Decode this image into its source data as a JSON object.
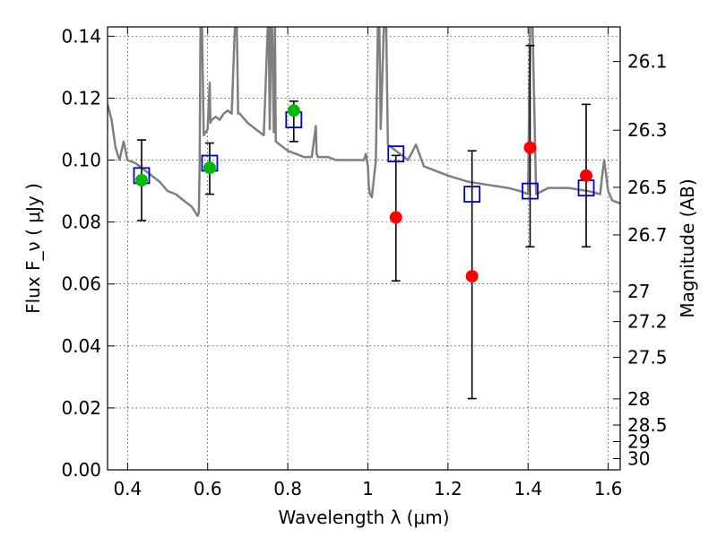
{
  "chart_data": {
    "type": "scatter",
    "xlabel": "Wavelength  λ (μm)",
    "ylabel": "Flux  F_ν  ( μJy )",
    "ylabel_right": "Magnitude (AB)",
    "xlim": [
      0.35,
      1.63
    ],
    "ylim": [
      0.0,
      0.143
    ],
    "grid": true,
    "x_ticks": [
      0.4,
      0.6,
      0.8,
      1.0,
      1.2,
      1.4,
      1.6
    ],
    "x_tick_labels": [
      "0.4",
      "0.6",
      "0.8",
      "1",
      "1.2",
      "1.4",
      "1.6"
    ],
    "y_ticks": [
      0.0,
      0.02,
      0.04,
      0.06,
      0.08,
      0.1,
      0.12,
      0.14
    ],
    "y_tick_labels": [
      "0.00",
      "0.02",
      "0.04",
      "0.06",
      "0.08",
      "0.10",
      "0.12",
      "0.14"
    ],
    "mag_ticks": [
      26.1,
      26.3,
      26.5,
      26.7,
      27,
      27.2,
      27.5,
      28,
      28.5,
      29,
      30
    ],
    "mag_tick_labels": [
      "26.1",
      "26.3",
      "26.5",
      "26.7",
      "27",
      "27.2",
      "27.5",
      "28",
      "28.5",
      "29",
      "30"
    ],
    "series": [
      {
        "kind": "spectrum",
        "color": "#7f7f7f",
        "x": [
          0.35,
          0.36,
          0.37,
          0.38,
          0.39,
          0.4,
          0.42,
          0.44,
          0.46,
          0.48,
          0.5,
          0.52,
          0.54,
          0.56,
          0.565,
          0.57,
          0.575,
          0.578,
          0.58,
          0.582,
          0.585,
          0.59,
          0.6,
          0.605,
          0.607,
          0.61,
          0.62,
          0.63,
          0.64,
          0.65,
          0.66,
          0.668,
          0.672,
          0.676,
          0.68,
          0.7,
          0.72,
          0.74,
          0.75,
          0.752,
          0.755,
          0.758,
          0.76,
          0.765,
          0.768,
          0.77,
          0.78,
          0.8,
          0.82,
          0.84,
          0.86,
          0.87,
          0.872,
          0.875,
          0.88,
          0.9,
          0.92,
          0.94,
          0.96,
          0.98,
          0.99,
          0.995,
          1.0,
          1.002,
          1.005,
          1.01,
          1.02,
          1.025,
          1.028,
          1.032,
          1.04,
          1.045,
          1.05,
          1.06,
          1.08,
          1.1,
          1.12,
          1.14,
          1.16,
          1.2,
          1.25,
          1.3,
          1.35,
          1.38,
          1.4,
          1.405,
          1.41,
          1.42,
          1.45,
          1.5,
          1.55,
          1.58,
          1.585,
          1.59,
          1.6,
          1.61,
          1.63
        ],
        "y": [
          0.118,
          0.113,
          0.104,
          0.1,
          0.106,
          0.1,
          0.099,
          0.097,
          0.095,
          0.093,
          0.09,
          0.089,
          0.087,
          0.085,
          0.084,
          0.083,
          0.082,
          0.083,
          0.1,
          0.143,
          0.15,
          0.108,
          0.11,
          0.125,
          0.112,
          0.113,
          0.114,
          0.113,
          0.115,
          0.116,
          0.115,
          0.143,
          0.15,
          0.115,
          0.115,
          0.112,
          0.11,
          0.108,
          0.143,
          0.15,
          0.11,
          0.143,
          0.15,
          0.109,
          0.143,
          0.106,
          0.105,
          0.103,
          0.102,
          0.101,
          0.101,
          0.111,
          0.102,
          0.101,
          0.101,
          0.101,
          0.1,
          0.1,
          0.1,
          0.1,
          0.1,
          0.102,
          0.098,
          0.092,
          0.089,
          0.088,
          0.1,
          0.143,
          0.15,
          0.11,
          0.143,
          0.15,
          0.105,
          0.104,
          0.102,
          0.1,
          0.105,
          0.098,
          0.097,
          0.095,
          0.093,
          0.092,
          0.091,
          0.09,
          0.089,
          0.143,
          0.15,
          0.089,
          0.091,
          0.091,
          0.09,
          0.089,
          0.095,
          0.1,
          0.09,
          0.087,
          0.086
        ]
      },
      {
        "kind": "model_boxes",
        "color": "#0000cc",
        "x": [
          0.435,
          0.605,
          0.815,
          1.07,
          1.26,
          1.405,
          1.545
        ],
        "y": [
          0.095,
          0.099,
          0.113,
          0.102,
          0.089,
          0.09,
          0.091
        ]
      },
      {
        "kind": "observed_points",
        "x": [
          0.435,
          0.605,
          0.815,
          1.07,
          1.26,
          1.405,
          1.545
        ],
        "y": [
          0.0935,
          0.0975,
          0.116,
          0.0815,
          0.0625,
          0.104,
          0.095
        ],
        "yerr_low": [
          0.0805,
          0.089,
          0.106,
          0.061,
          0.023,
          0.072,
          0.072
        ],
        "yerr_high": [
          0.1065,
          0.1055,
          0.119,
          0.1015,
          0.103,
          0.137,
          0.118
        ],
        "colors": [
          "#00bb00",
          "#00bb00",
          "#00bb00",
          "#ff0000",
          "#ff0000",
          "#ff0000",
          "#ff0000"
        ]
      }
    ]
  }
}
